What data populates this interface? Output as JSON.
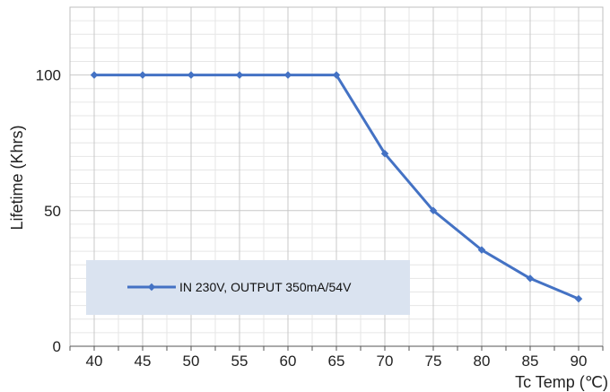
{
  "chart_data": {
    "type": "line",
    "title": "",
    "xlabel": "Tc Temp (℃)",
    "ylabel": "Lifetime (Khrs)",
    "x": [
      40,
      45,
      50,
      55,
      60,
      65,
      70,
      75,
      80,
      85,
      90
    ],
    "series": [
      {
        "name": "IN 230V, OUTPUT 350mA/54V",
        "values": [
          100,
          100,
          100,
          100,
          100,
          100,
          71,
          50,
          35.5,
          25,
          17.5
        ]
      }
    ],
    "xlim": [
      37.5,
      92.5
    ],
    "ylim": [
      0,
      125
    ],
    "xticks": [
      "40",
      "45",
      "50",
      "55",
      "60",
      "65",
      "70",
      "75",
      "80",
      "85",
      "90"
    ],
    "yticks": [
      "0",
      "50",
      "100"
    ],
    "grid": true,
    "legend_position": "lower-left",
    "colors": {
      "series": "#4472C4",
      "grid": "#c8c8c8",
      "minor_grid": "#e6e6e6",
      "legend_bg": "#dae3f0"
    }
  }
}
